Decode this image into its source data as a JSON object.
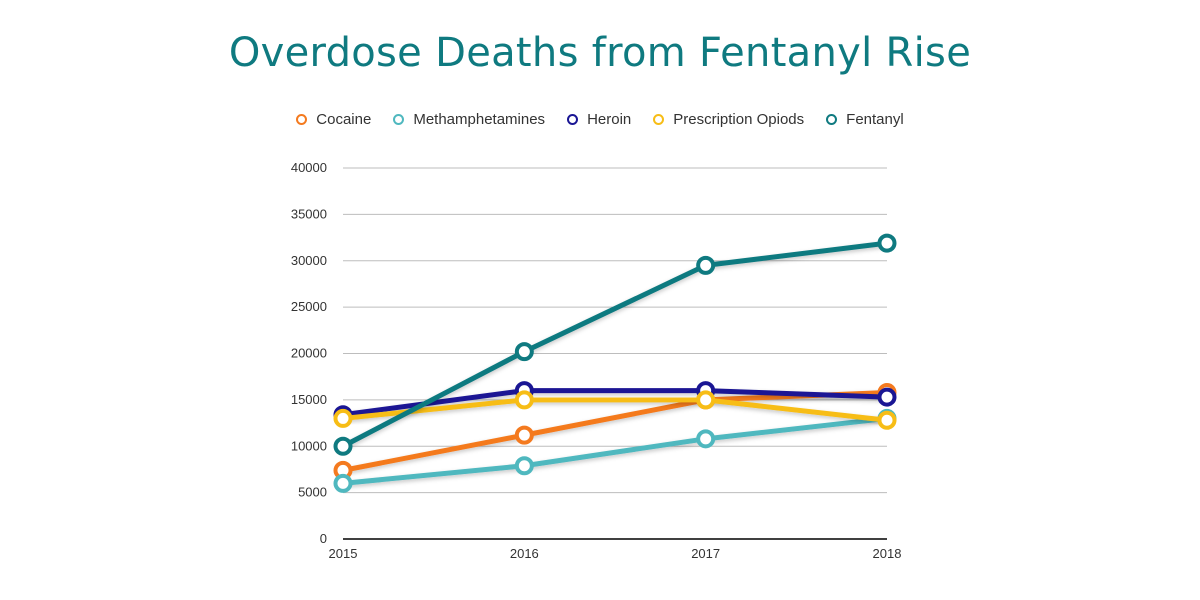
{
  "chart_data": {
    "type": "line",
    "title": "Overdose Deaths from Fentanyl Rise",
    "xlabel": "",
    "ylabel": "",
    "categories": [
      "2015",
      "2016",
      "2017",
      "2018"
    ],
    "ylim": [
      0,
      40000
    ],
    "yticks": [
      "0",
      "5000",
      "10000",
      "15000",
      "20000",
      "25000",
      "30000",
      "35000",
      "40000"
    ],
    "grid": true,
    "legend_position": "top",
    "series": [
      {
        "name": "Cocaine",
        "color": "#f47a1f",
        "values": [
          7400,
          11200,
          15000,
          15800
        ]
      },
      {
        "name": "Methamphetamines",
        "color": "#4fb8bf",
        "values": [
          6000,
          7900,
          10800,
          13000
        ]
      },
      {
        "name": "Heroin",
        "color": "#1a1694",
        "values": [
          13400,
          16000,
          16000,
          15300
        ]
      },
      {
        "name": "Prescription Opiods",
        "color": "#f7bd16",
        "values": [
          13000,
          15000,
          15000,
          12800
        ]
      },
      {
        "name": "Fentanyl",
        "color": "#0f7a80",
        "values": [
          10000,
          20200,
          29500,
          31900
        ]
      }
    ]
  }
}
